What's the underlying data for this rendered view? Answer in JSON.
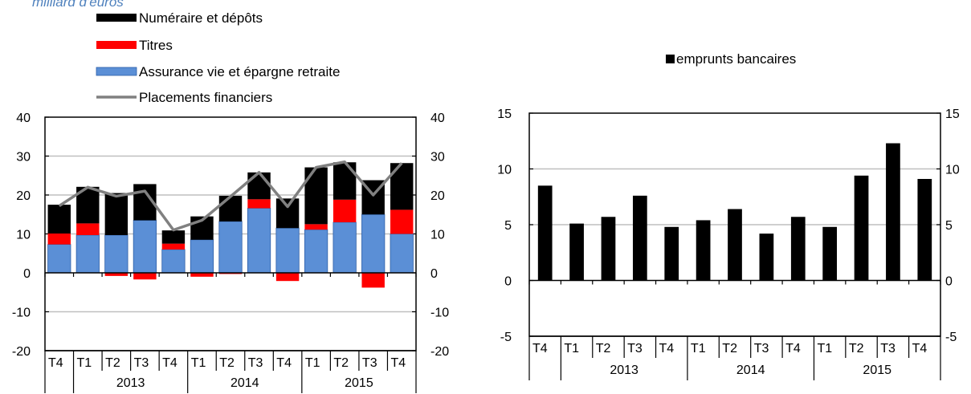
{
  "top_caption": "milliard d'euros",
  "chart_data": [
    {
      "type": "bar",
      "stacked": true,
      "categories": [
        "T4",
        "T1",
        "T2",
        "T3",
        "T4",
        "T1",
        "T2",
        "T3",
        "T4",
        "T1",
        "T2",
        "T3",
        "T4"
      ],
      "years": [
        {
          "label": "2013",
          "from": 1,
          "to": 4
        },
        {
          "label": "2014",
          "from": 5,
          "to": 8
        },
        {
          "label": "2015",
          "from": 9,
          "to": 12
        }
      ],
      "ylim": [
        -20,
        40
      ],
      "yticks": [
        -20,
        -10,
        0,
        10,
        20,
        30,
        40
      ],
      "grid": true,
      "legend_position": "top-left",
      "series": [
        {
          "name": "Numéraire et dépôts",
          "color": "#000000",
          "values": [
            7.4,
            9.4,
            10.8,
            9.3,
            3.4,
            6.0,
            6.6,
            6.9,
            7.6,
            14.6,
            9.6,
            8.8,
            12.0
          ]
        },
        {
          "name": "Titres",
          "color": "#ff0000",
          "values": [
            2.8,
            3.0,
            -0.8,
            -1.7,
            1.5,
            -1.0,
            -0.3,
            2.3,
            -2.1,
            1.4,
            5.8,
            -3.8,
            6.2
          ]
        },
        {
          "name": "Assurance vie et épargne retraite",
          "color": "#5b8fd6",
          "values": [
            7.3,
            9.7,
            9.7,
            13.5,
            6.0,
            8.5,
            13.2,
            16.6,
            11.5,
            11.1,
            13.0,
            15.0,
            10.0
          ]
        }
      ],
      "line_series": {
        "name": "Placements financiers",
        "color": "#808080",
        "values": [
          17.2,
          22.0,
          19.7,
          21.0,
          11.0,
          13.5,
          19.6,
          25.8,
          17.0,
          27.1,
          28.5,
          20.0,
          28.2
        ]
      }
    },
    {
      "type": "bar",
      "categories": [
        "T4",
        "T1",
        "T2",
        "T3",
        "T4",
        "T1",
        "T2",
        "T3",
        "T4",
        "T1",
        "T2",
        "T3",
        "T4"
      ],
      "years": [
        {
          "label": "2013",
          "from": 1,
          "to": 4
        },
        {
          "label": "2014",
          "from": 5,
          "to": 8
        },
        {
          "label": "2015",
          "from": 9,
          "to": 12
        }
      ],
      "ylim": [
        -5,
        15
      ],
      "yticks": [
        -5,
        0,
        5,
        10,
        15
      ],
      "grid": true,
      "legend_position": "top-center",
      "series": [
        {
          "name": "emprunts bancaires",
          "color": "#000000",
          "values": [
            8.5,
            5.1,
            5.7,
            7.6,
            4.8,
            5.4,
            6.4,
            4.2,
            5.7,
            4.8,
            9.4,
            12.3,
            9.1
          ]
        }
      ]
    }
  ]
}
